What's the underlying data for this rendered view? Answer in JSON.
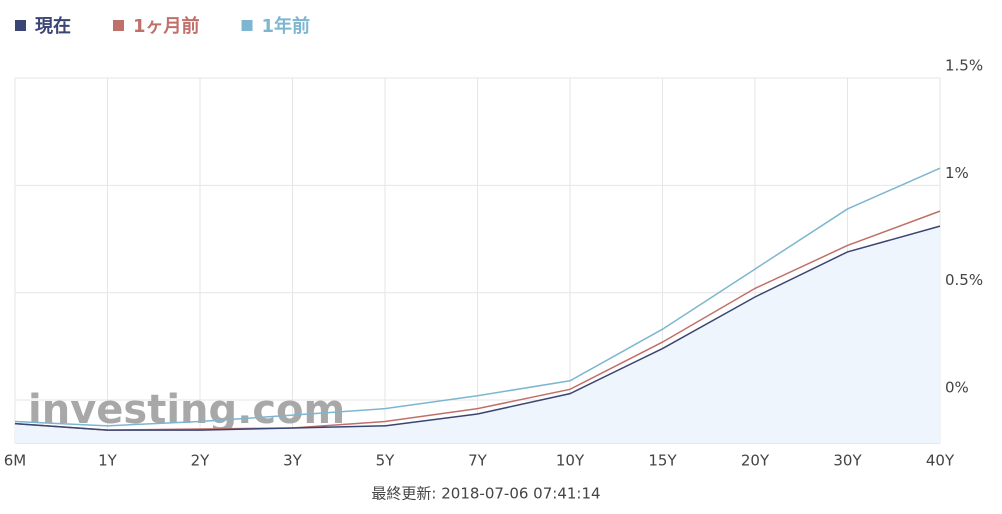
{
  "chart_data": {
    "type": "line",
    "categories": [
      "6M",
      "1Y",
      "2Y",
      "3Y",
      "5Y",
      "7Y",
      "10Y",
      "15Y",
      "20Y",
      "30Y",
      "40Y"
    ],
    "series": [
      {
        "name": "現在",
        "color": "#3b4573",
        "fill": "#eef5fc",
        "values": [
          -0.11,
          -0.14,
          -0.14,
          -0.13,
          -0.12,
          -0.065,
          0.03,
          0.24,
          0.48,
          0.69,
          0.81
        ]
      },
      {
        "name": "1ヶ月前",
        "color": "#c0706a",
        "values": [
          -0.11,
          -0.14,
          -0.135,
          -0.13,
          -0.1,
          -0.04,
          0.05,
          0.27,
          0.52,
          0.72,
          0.88
        ]
      },
      {
        "name": "1年前",
        "color": "#7db6d0",
        "values": [
          -0.1,
          -0.12,
          -0.1,
          -0.07,
          -0.04,
          0.02,
          0.09,
          0.33,
          0.61,
          0.89,
          1.08
        ]
      }
    ],
    "ylim": [
      -0.2,
      1.5
    ],
    "yticks": [
      {
        "value": 0,
        "label": "0%"
      },
      {
        "value": 0.5,
        "label": "0.5%"
      },
      {
        "value": 1,
        "label": "1%"
      },
      {
        "value": 1.5,
        "label": "1.5%"
      }
    ],
    "grid": true,
    "watermark": "investing.com",
    "footer": "最終更新: 2018-07-06 07:41:14"
  }
}
